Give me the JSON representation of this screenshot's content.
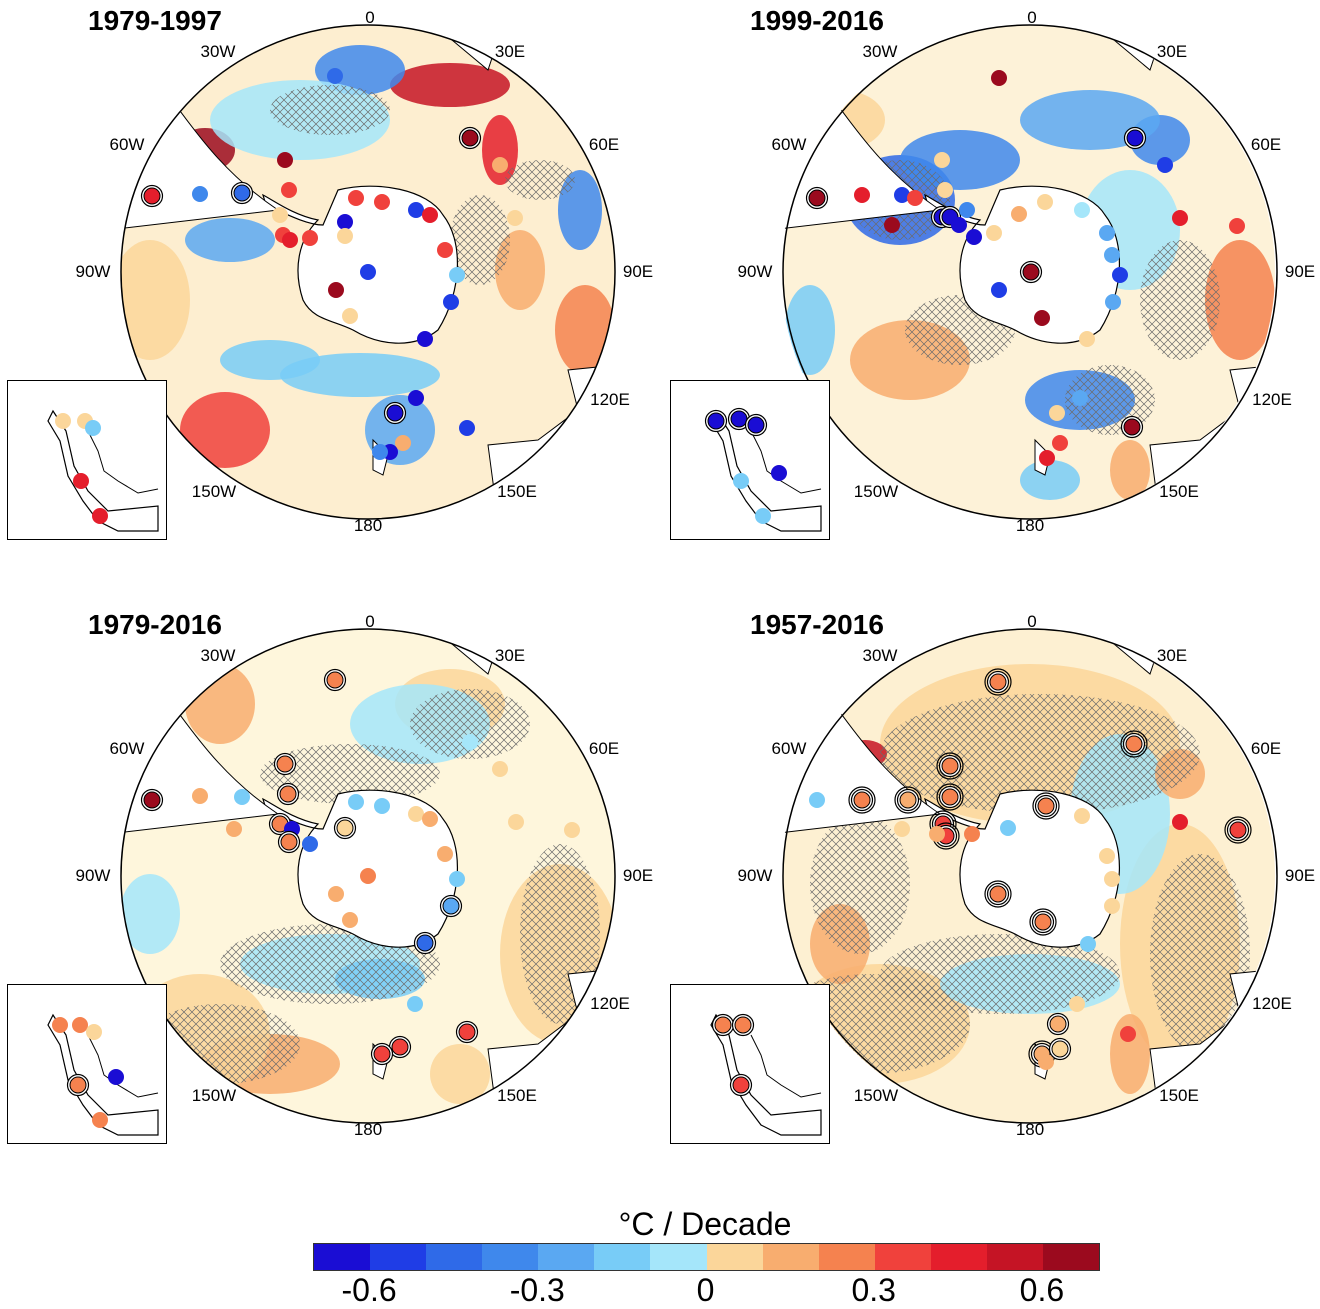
{
  "panels": [
    {
      "title": "1979-1997",
      "labels": {
        "lon_0": "0",
        "lon_30e": "30E",
        "lon_60e": "60E",
        "lon_90e": "90E",
        "lon_120e": "120E",
        "lon_150e": "150E",
        "lon_180": "180",
        "lon_150w": "150W",
        "lon_90w": "90W",
        "lon_60w": "60W",
        "lon_30w": "30W"
      }
    },
    {
      "title": "1999-2016",
      "labels": {
        "lon_0": "0",
        "lon_30e": "30E",
        "lon_60e": "60E",
        "lon_90e": "90E",
        "lon_120e": "120E",
        "lon_150e": "150E",
        "lon_180": "180",
        "lon_150w": "150W",
        "lon_90w": "90W",
        "lon_60w": "60W",
        "lon_30w": "30W"
      }
    },
    {
      "title": "1979-2016",
      "labels": {
        "lon_0": "0",
        "lon_30e": "30E",
        "lon_60e": "60E",
        "lon_90e": "90E",
        "lon_120e": "120E",
        "lon_150e": "150E",
        "lon_180": "180",
        "lon_150w": "150W",
        "lon_90w": "90W",
        "lon_60w": "60W",
        "lon_30w": "30W"
      }
    },
    {
      "title": "1957-2016",
      "labels": {
        "lon_0": "0",
        "lon_30e": "30E",
        "lon_60e": "60E",
        "lon_90e": "90E",
        "lon_120e": "120E",
        "lon_150e": "150E",
        "lon_180": "180",
        "lon_150w": "150W",
        "lon_90w": "90W",
        "lon_60w": "60W",
        "lon_30w": "30W"
      }
    }
  ],
  "colorbar": {
    "title": "°C / Decade",
    "ticks": [
      "-0.6",
      "-0.3",
      "0",
      "0.3",
      "0.6"
    ],
    "tick_values": [
      -0.6,
      -0.3,
      0,
      0.3,
      0.6
    ],
    "range": [
      -0.7,
      0.7
    ],
    "step": 0.1,
    "colors": [
      "#1a0dd4",
      "#1f3de6",
      "#2f6ae8",
      "#3f88ec",
      "#5aa8f2",
      "#78ccf7",
      "#a5e6fa",
      "#fbd69a",
      "#f8ad6f",
      "#f5824f",
      "#f0413c",
      "#e41e2c",
      "#c51425",
      "#9b0a1e"
    ]
  }
}
